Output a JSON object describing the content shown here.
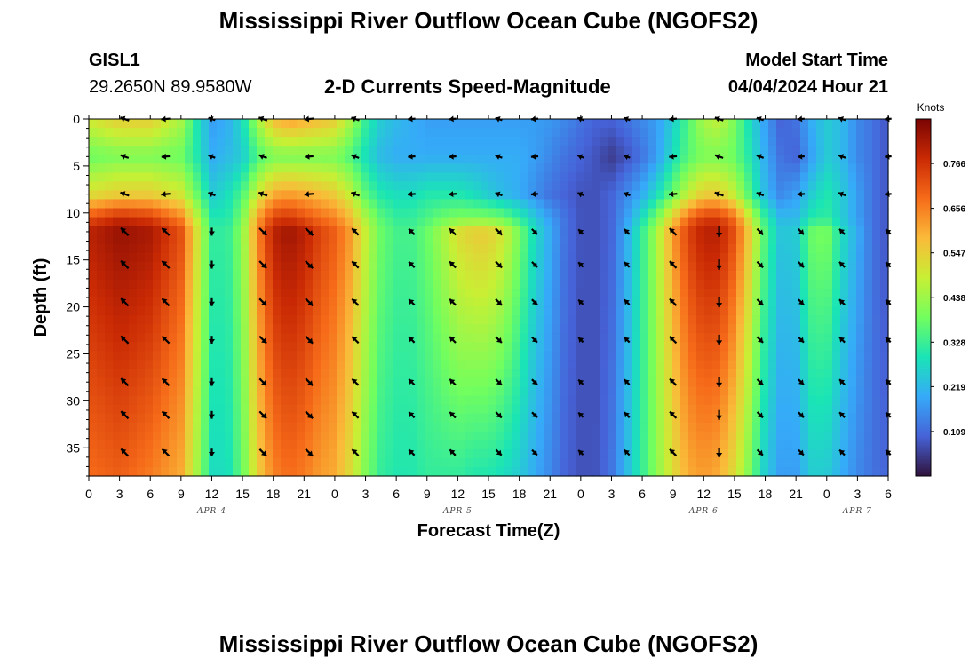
{
  "header": {
    "title_top": "Mississippi River Outflow Ocean Cube (NGOFS2)",
    "title_bottom": "Mississippi River Outflow Ocean Cube (NGOFS2)",
    "station_id": "GISL1",
    "station_coords": "29.2650N  89.9580W",
    "plot_subtitle": "2-D Currents Speed-Magnitude",
    "model_start_label": "Model Start Time",
    "model_start_value": "04/04/2024 Hour 21"
  },
  "colors": {
    "colormap": [
      "#30123b",
      "#4662d7",
      "#36aaf9",
      "#1ae4b6",
      "#72fe5e",
      "#c8ef34",
      "#faba39",
      "#f66b19",
      "#ca2a04",
      "#7a0403"
    ],
    "arrow": "#000000",
    "background": "#ffffff"
  },
  "chart_data": {
    "type": "heatmap",
    "title": "2-D Currents Speed-Magnitude",
    "xlabel": "Forecast Time(Z)",
    "ylabel": "Depth (ft)",
    "x_range_hours": [
      0,
      78
    ],
    "x_tick_step_hours": 3,
    "x_tick_labels": [
      "0",
      "3",
      "6",
      "9",
      "12",
      "15",
      "18",
      "21",
      "0",
      "3",
      "6",
      "9",
      "12",
      "15",
      "18",
      "21",
      "0",
      "3",
      "6",
      "9",
      "12",
      "15",
      "18",
      "21",
      "0",
      "3",
      "6"
    ],
    "date_labels": [
      {
        "text": "APR 4",
        "hour": 12
      },
      {
        "text": "APR 5",
        "hour": 36
      },
      {
        "text": "APR 6",
        "hour": 60
      },
      {
        "text": "APR 7",
        "hour": 75
      }
    ],
    "y_range_ft": [
      0,
      38
    ],
    "y_ticks": [
      0,
      5,
      10,
      15,
      20,
      25,
      30,
      35
    ],
    "y_tick_labels": [
      "0",
      "5",
      "10",
      "15",
      "20",
      "25",
      "30",
      "35"
    ],
    "colorbar": {
      "unit": "Knots",
      "range": [
        0.0,
        0.875
      ],
      "tick_values": [
        0.109,
        0.219,
        0.328,
        0.438,
        0.547,
        0.656,
        0.766
      ],
      "tick_labels": [
        "0.109",
        "0.219",
        "0.328",
        "0.438",
        "0.547",
        "0.656",
        "0.766"
      ]
    },
    "vector_times_hours": [
      3.5,
      7.5,
      12,
      17,
      21.5,
      26,
      31.5,
      35.5,
      40,
      43.5,
      48,
      52.5,
      57,
      61.5,
      65.5,
      69.5,
      73.5,
      78
    ],
    "vector_depths_ft": [
      0,
      4,
      8,
      12,
      15.5,
      19.5,
      23.5,
      28,
      31.5,
      35.5
    ],
    "speed_profile": {
      "depths_ft": [
        0,
        4,
        8,
        10.5,
        12,
        38
      ],
      "times_hours": [
        0,
        3,
        6,
        9,
        10.5,
        12,
        13.5,
        15,
        16.5,
        18,
        19.5,
        21,
        22.5,
        24,
        25.5,
        27,
        28.5,
        30,
        31.5,
        33,
        34.5,
        36,
        37.5,
        39,
        40.5,
        42,
        43.5,
        45,
        46.5,
        48,
        49.5,
        51,
        52.5,
        54,
        55.5,
        57,
        58.5,
        60,
        61.5,
        63,
        64.5,
        66,
        67.5,
        69,
        70.5,
        72,
        73.5,
        75,
        76.5,
        78
      ],
      "speed_knots": [
        [
          0.5,
          0.55,
          0.55,
          0.45,
          0.3,
          0.18,
          0.2,
          0.28,
          0.45,
          0.58,
          0.62,
          0.6,
          0.58,
          0.55,
          0.45,
          0.32,
          0.25,
          0.22,
          0.2,
          0.18,
          0.18,
          0.18,
          0.18,
          0.18,
          0.18,
          0.18,
          0.18,
          0.17,
          0.15,
          0.12,
          0.1,
          0.1,
          0.12,
          0.15,
          0.18,
          0.25,
          0.35,
          0.45,
          0.48,
          0.4,
          0.28,
          0.18,
          0.1,
          0.12,
          0.2,
          0.25,
          0.22,
          0.15,
          0.12,
          0.08
        ],
        [
          0.38,
          0.4,
          0.4,
          0.38,
          0.3,
          0.2,
          0.22,
          0.25,
          0.35,
          0.4,
          0.4,
          0.4,
          0.4,
          0.4,
          0.35,
          0.28,
          0.22,
          0.2,
          0.2,
          0.2,
          0.2,
          0.2,
          0.2,
          0.2,
          0.2,
          0.2,
          0.18,
          0.15,
          0.12,
          0.1,
          0.08,
          0.05,
          0.08,
          0.12,
          0.18,
          0.28,
          0.36,
          0.4,
          0.4,
          0.38,
          0.3,
          0.2,
          0.12,
          0.1,
          0.18,
          0.25,
          0.22,
          0.15,
          0.12,
          0.08
        ],
        [
          0.52,
          0.55,
          0.55,
          0.5,
          0.38,
          0.25,
          0.28,
          0.35,
          0.5,
          0.6,
          0.62,
          0.6,
          0.58,
          0.55,
          0.48,
          0.36,
          0.3,
          0.28,
          0.28,
          0.3,
          0.3,
          0.3,
          0.28,
          0.25,
          0.22,
          0.2,
          0.16,
          0.12,
          0.1,
          0.08,
          0.08,
          0.1,
          0.15,
          0.2,
          0.28,
          0.38,
          0.48,
          0.55,
          0.55,
          0.48,
          0.35,
          0.22,
          0.15,
          0.18,
          0.25,
          0.3,
          0.25,
          0.18,
          0.12,
          0.08
        ],
        [
          0.72,
          0.78,
          0.75,
          0.65,
          0.48,
          0.3,
          0.3,
          0.4,
          0.62,
          0.74,
          0.76,
          0.72,
          0.68,
          0.65,
          0.58,
          0.45,
          0.36,
          0.32,
          0.32,
          0.35,
          0.38,
          0.4,
          0.4,
          0.4,
          0.38,
          0.32,
          0.25,
          0.18,
          0.12,
          0.08,
          0.08,
          0.1,
          0.18,
          0.28,
          0.4,
          0.55,
          0.68,
          0.75,
          0.75,
          0.68,
          0.5,
          0.32,
          0.22,
          0.22,
          0.3,
          0.32,
          0.25,
          0.18,
          0.12,
          0.08
        ],
        [
          0.8,
          0.84,
          0.82,
          0.72,
          0.52,
          0.32,
          0.32,
          0.42,
          0.65,
          0.8,
          0.83,
          0.8,
          0.74,
          0.7,
          0.62,
          0.48,
          0.38,
          0.34,
          0.34,
          0.38,
          0.45,
          0.52,
          0.55,
          0.55,
          0.5,
          0.4,
          0.28,
          0.2,
          0.12,
          0.08,
          0.08,
          0.1,
          0.2,
          0.32,
          0.45,
          0.62,
          0.74,
          0.8,
          0.8,
          0.72,
          0.55,
          0.35,
          0.24,
          0.25,
          0.38,
          0.4,
          0.28,
          0.2,
          0.12,
          0.08
        ],
        [
          0.68,
          0.7,
          0.66,
          0.6,
          0.45,
          0.28,
          0.28,
          0.38,
          0.55,
          0.65,
          0.68,
          0.66,
          0.62,
          0.6,
          0.52,
          0.4,
          0.32,
          0.3,
          0.3,
          0.32,
          0.32,
          0.32,
          0.3,
          0.3,
          0.28,
          0.25,
          0.2,
          0.15,
          0.1,
          0.08,
          0.08,
          0.12,
          0.22,
          0.32,
          0.42,
          0.52,
          0.6,
          0.62,
          0.6,
          0.52,
          0.4,
          0.25,
          0.18,
          0.18,
          0.25,
          0.25,
          0.2,
          0.15,
          0.12,
          0.1
        ]
      ]
    }
  }
}
